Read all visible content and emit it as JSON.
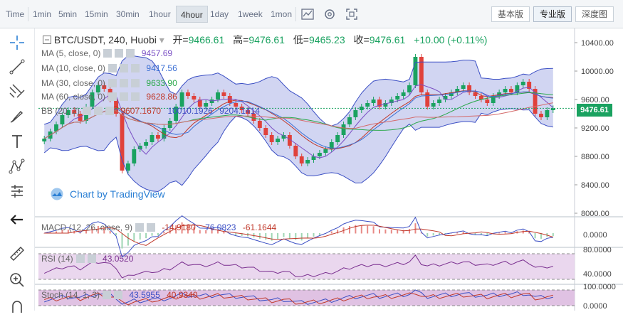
{
  "toolbar": {
    "timeframes": [
      "Time",
      "1min",
      "5min",
      "15min",
      "30min",
      "1hour",
      "4hour",
      "1day",
      "1week",
      "1mon"
    ],
    "active_timeframe": "4hour",
    "versions": [
      "基本版",
      "专业版",
      "深度图"
    ],
    "active_version": "专业版"
  },
  "legend": {
    "symbol": "BTC/USDT, 240, Huobi",
    "open_label": "开=",
    "open": "9466.61",
    "high_label": "高=",
    "high": "9476.61",
    "low_label": "低=",
    "low": "9465.23",
    "close_label": "收=",
    "close": "9476.61",
    "change": "+10.00 (+0.11%)"
  },
  "indicators": {
    "ma5": {
      "label": "MA (5, close, 0)",
      "value": "9457.69"
    },
    "ma10": {
      "label": "MA (10, close, 0)",
      "value": "9417.56"
    },
    "ma30": {
      "label": "MA (30, close, 0)",
      "value": "9633.90"
    },
    "ma60": {
      "label": "MA (60, close, 0)",
      "value": "9628.86"
    },
    "bb": {
      "label": "BB (20, 2)",
      "v1": "9607.1670",
      "v2": "10010.1926",
      "v3": "9204.1414"
    },
    "macd": {
      "label": "MACD (12, 26, close, 9)",
      "v1": "-14.9180",
      "v2": "-76.0823",
      "v3": "-61.1644"
    },
    "rsi": {
      "label": "RSI (14)",
      "value": "43.0520"
    },
    "stoch": {
      "label": "Stoch (14, 1, 3)",
      "v1": "43.5955",
      "v2": "40.9340"
    }
  },
  "price_axis": [
    "10400.00",
    "10000.00",
    "9600.00",
    "9200.00",
    "8800.00",
    "8400.00",
    "8000.00"
  ],
  "current_price": "9476.61",
  "macd_axis": [
    "0.0000"
  ],
  "rsi_axis": [
    "80.0000",
    "40.0000"
  ],
  "stoch_axis": [
    "100.0000",
    "0.0000"
  ],
  "watermark": "Chart by TradingView",
  "colors": {
    "up": "#1aa260",
    "down": "#e0413b",
    "band": "#3b4fc4",
    "bandfill": "#c5cbef"
  },
  "chart_data": {
    "type": "line",
    "close_series_description_free": true,
    "closes": [
      9050,
      9150,
      9250,
      9380,
      9450,
      9400,
      9300,
      9500,
      9700,
      9800,
      9750,
      9600,
      9400,
      8600,
      8700,
      8900,
      8950,
      9000,
      9100,
      9050,
      9200,
      9300,
      9500,
      9700,
      9650,
      9600,
      9500,
      9550,
      9600,
      9700,
      9650,
      9550,
      9500,
      9450,
      9400,
      9300,
      9200,
      9100,
      9000,
      9050,
      9100,
      8950,
      8800,
      8700,
      8750,
      8800,
      8850,
      8900,
      9000,
      9100,
      9250,
      9350,
      9450,
      9500,
      9550,
      9600,
      9500,
      9550,
      9600,
      9650,
      9700,
      9800,
      10200,
      9700,
      9500,
      9550,
      9600,
      9650,
      9700,
      9750,
      9800,
      9700,
      9650,
      9600,
      9550,
      9650,
      9700,
      9750,
      9700,
      9800,
      9850,
      9750,
      9400,
      9350,
      9450,
      9476.61
    ],
    "ylim": [
      8000,
      10500
    ]
  }
}
